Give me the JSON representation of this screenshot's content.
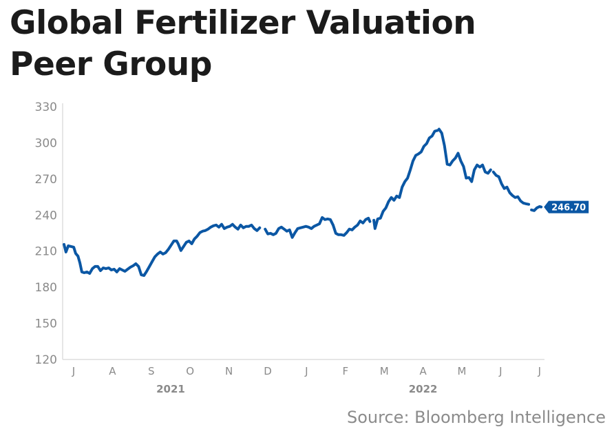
{
  "title_line1": "Global Fertilizer Valuation",
  "title_line2": "Peer Group",
  "source": "Source: Bloomberg Intelligence",
  "colors": {
    "line": "#0b57a4",
    "axis": "#dddddd",
    "tick_text": "#8a8a8a",
    "title": "#1b1b1b"
  },
  "chart_data": {
    "type": "line",
    "title": "Global Fertilizer Valuation Peer Group",
    "xlabel": "",
    "ylabel": "",
    "ylim": [
      120,
      330
    ],
    "yticks": [
      120,
      150,
      180,
      210,
      240,
      270,
      300,
      330
    ],
    "xtick_labels": [
      "J",
      "A",
      "S",
      "O",
      "N",
      "D",
      "J",
      "F",
      "M",
      "A",
      "M",
      "J",
      "J"
    ],
    "year_labels": [
      {
        "label": "2021",
        "month_index": 2.5
      },
      {
        "label": "2022",
        "month_index": 9
      }
    ],
    "x_range_months": [
      0,
      12.1
    ],
    "grid": false,
    "last_value_label": "246.70",
    "series": [
      {
        "name": "Global Fertilizer Valuation Peer Group",
        "segments": [
          [
            [
              0.0,
              215.6
            ],
            [
              0.05,
              209.3
            ],
            [
              0.11,
              214.5
            ],
            [
              0.18,
              213.9
            ],
            [
              0.25,
              213.3
            ],
            [
              0.3,
              208.2
            ],
            [
              0.36,
              205.9
            ],
            [
              0.41,
              200.2
            ],
            [
              0.46,
              192.7
            ],
            [
              0.52,
              192.1
            ],
            [
              0.59,
              192.7
            ],
            [
              0.66,
              191.5
            ],
            [
              0.73,
              195.5
            ],
            [
              0.8,
              197.3
            ],
            [
              0.87,
              197.3
            ],
            [
              0.94,
              193.8
            ],
            [
              1.01,
              196.1
            ],
            [
              1.08,
              195.5
            ],
            [
              1.15,
              196.1
            ],
            [
              1.22,
              194.4
            ],
            [
              1.29,
              195.0
            ],
            [
              1.36,
              192.7
            ],
            [
              1.43,
              195.5
            ],
            [
              1.5,
              194.4
            ],
            [
              1.57,
              193.3
            ],
            [
              1.64,
              195.0
            ],
            [
              1.71,
              196.7
            ],
            [
              1.78,
              197.9
            ],
            [
              1.85,
              199.6
            ],
            [
              1.92,
              197.3
            ],
            [
              1.99,
              190.4
            ],
            [
              2.06,
              189.8
            ],
            [
              2.13,
              193.3
            ],
            [
              2.2,
              197.3
            ],
            [
              2.27,
              201.3
            ],
            [
              2.34,
              205.3
            ],
            [
              2.41,
              207.6
            ],
            [
              2.48,
              209.3
            ],
            [
              2.55,
              207.6
            ],
            [
              2.62,
              208.8
            ],
            [
              2.69,
              211.6
            ],
            [
              2.76,
              215.1
            ],
            [
              2.83,
              218.5
            ],
            [
              2.9,
              218.5
            ],
            [
              2.94,
              216.2
            ],
            [
              3.01,
              210.5
            ],
            [
              3.08,
              213.9
            ],
            [
              3.15,
              217.4
            ],
            [
              3.22,
              218.5
            ],
            [
              3.29,
              216.2
            ],
            [
              3.36,
              220.2
            ],
            [
              3.43,
              222.5
            ],
            [
              3.5,
              225.4
            ],
            [
              3.57,
              226.6
            ],
            [
              3.64,
              227.1
            ],
            [
              3.71,
              228.3
            ],
            [
              3.78,
              230.0
            ],
            [
              3.85,
              231.1
            ],
            [
              3.92,
              231.7
            ],
            [
              3.99,
              230.0
            ],
            [
              4.06,
              232.3
            ],
            [
              4.13,
              228.8
            ],
            [
              4.2,
              230.0
            ],
            [
              4.27,
              230.6
            ],
            [
              4.34,
              232.3
            ],
            [
              4.41,
              230.0
            ],
            [
              4.48,
              228.3
            ],
            [
              4.55,
              231.7
            ],
            [
              4.62,
              229.4
            ],
            [
              4.69,
              230.6
            ],
            [
              4.76,
              230.6
            ],
            [
              4.83,
              231.7
            ],
            [
              4.9,
              228.8
            ],
            [
              4.97,
              227.1
            ],
            [
              5.04,
              229.4
            ]
          ],
          [
            [
              5.18,
              228.3
            ],
            [
              5.25,
              224.3
            ],
            [
              5.32,
              224.8
            ],
            [
              5.39,
              223.7
            ],
            [
              5.46,
              224.8
            ],
            [
              5.53,
              228.8
            ],
            [
              5.6,
              230.0
            ],
            [
              5.67,
              228.3
            ],
            [
              5.74,
              226.6
            ],
            [
              5.81,
              227.7
            ],
            [
              5.88,
              221.4
            ],
            [
              5.95,
              225.4
            ],
            [
              6.02,
              228.8
            ],
            [
              6.09,
              229.4
            ],
            [
              6.16,
              230.0
            ],
            [
              6.23,
              230.6
            ],
            [
              6.3,
              230.0
            ],
            [
              6.37,
              228.8
            ],
            [
              6.44,
              230.6
            ],
            [
              6.51,
              231.7
            ],
            [
              6.58,
              232.8
            ],
            [
              6.65,
              238.0
            ],
            [
              6.72,
              236.3
            ],
            [
              6.79,
              236.8
            ],
            [
              6.86,
              236.3
            ],
            [
              6.93,
              231.7
            ],
            [
              7.0,
              224.8
            ],
            [
              7.07,
              223.7
            ],
            [
              7.14,
              223.7
            ],
            [
              7.21,
              223.1
            ],
            [
              7.28,
              225.4
            ],
            [
              7.35,
              228.3
            ],
            [
              7.42,
              227.7
            ],
            [
              7.49,
              230.0
            ],
            [
              7.56,
              231.7
            ],
            [
              7.63,
              235.1
            ],
            [
              7.7,
              233.4
            ],
            [
              7.77,
              236.3
            ],
            [
              7.84,
              237.4
            ],
            [
              7.88,
              234.6
            ]
          ],
          [
            [
              7.98,
              235.7
            ],
            [
              8.01,
              228.8
            ],
            [
              8.08,
              236.8
            ],
            [
              8.15,
              237.4
            ],
            [
              8.22,
              243.1
            ],
            [
              8.29,
              246.0
            ],
            [
              8.36,
              251.2
            ],
            [
              8.43,
              254.6
            ],
            [
              8.5,
              252.3
            ],
            [
              8.57,
              255.8
            ],
            [
              8.64,
              254.6
            ],
            [
              8.71,
              263.2
            ],
            [
              8.78,
              267.8
            ],
            [
              8.85,
              270.7
            ],
            [
              8.92,
              277.6
            ],
            [
              8.99,
              285.0
            ],
            [
              9.06,
              289.6
            ],
            [
              9.13,
              290.8
            ],
            [
              9.2,
              292.5
            ],
            [
              9.27,
              297.1
            ],
            [
              9.34,
              299.4
            ],
            [
              9.41,
              304.0
            ],
            [
              9.48,
              305.7
            ],
            [
              9.55,
              309.7
            ],
            [
              9.62,
              310.3
            ]
          ],
          [
            [
              9.66,
              311.4
            ],
            [
              9.73,
              308.0
            ],
            [
              9.8,
              297.7
            ],
            [
              9.87,
              282.2
            ],
            [
              9.94,
              281.6
            ],
            [
              10.01,
              285.0
            ],
            [
              10.08,
              287.3
            ],
            [
              10.15,
              291.4
            ],
            [
              10.22,
              285.0
            ],
            [
              10.29,
              280.4
            ],
            [
              10.36,
              270.7
            ],
            [
              10.43,
              271.2
            ],
            [
              10.5,
              267.8
            ],
            [
              10.57,
              277.6
            ],
            [
              10.64,
              281.6
            ],
            [
              10.71,
              279.9
            ],
            [
              10.78,
              281.6
            ],
            [
              10.85,
              275.8
            ],
            [
              10.92,
              274.7
            ],
            [
              10.99,
              277.6
            ]
          ],
          [
            [
              11.06,
              275.8
            ],
            [
              11.13,
              273.0
            ],
            [
              11.2,
              271.8
            ],
            [
              11.27,
              266.1
            ],
            [
              11.34,
              262.1
            ],
            [
              11.41,
              263.2
            ],
            [
              11.48,
              258.6
            ],
            [
              11.55,
              256.3
            ],
            [
              11.62,
              254.6
            ],
            [
              11.69,
              255.2
            ],
            [
              11.76,
              251.7
            ],
            [
              11.83,
              250.0
            ],
            [
              11.9,
              249.4
            ],
            [
              11.97,
              248.9
            ]
          ],
          [
            [
              12.04,
              244.3
            ],
            [
              12.11,
              243.7
            ],
            [
              12.18,
              246.0
            ],
            [
              12.25,
              247.1
            ],
            [
              12.29,
              246.7
            ]
          ]
        ]
      }
    ]
  }
}
